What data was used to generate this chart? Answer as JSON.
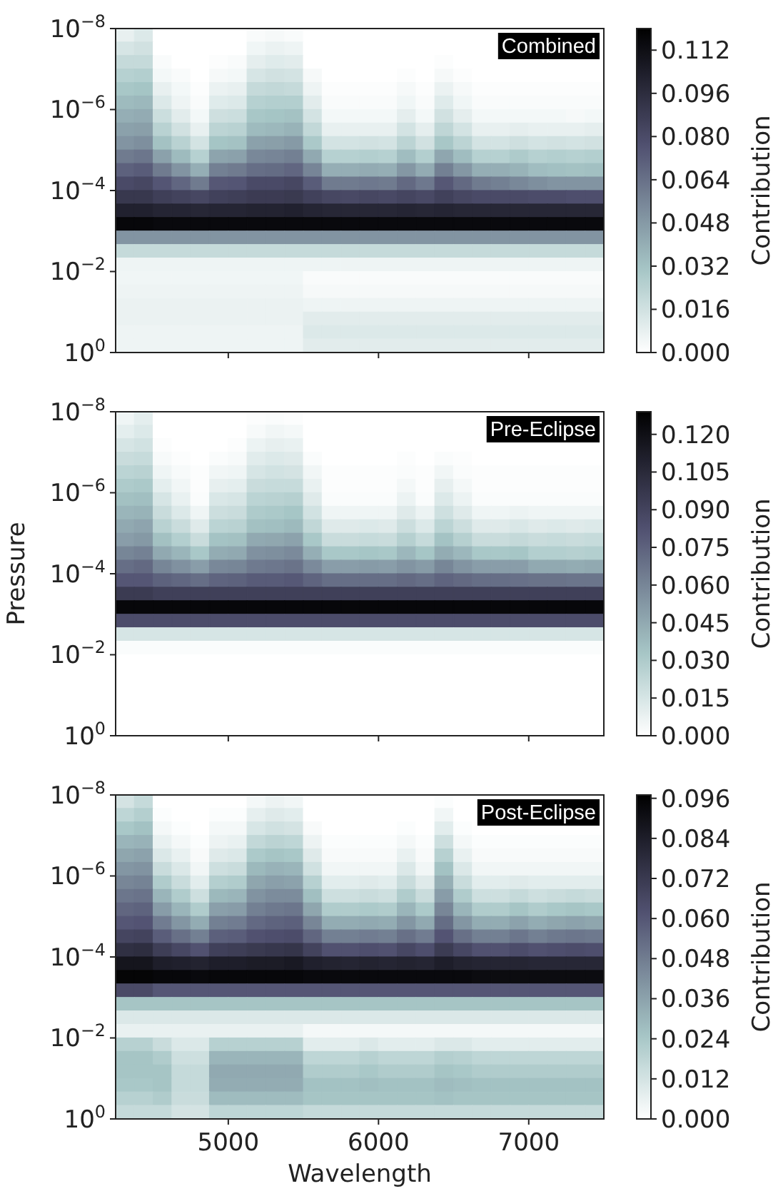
{
  "chart_data": [
    {
      "type": "heatmap",
      "annotations": [
        "Combined"
      ],
      "clabel": "Contribution",
      "tick_labels": "y",
      "log": "y",
      "xlim": [
        4250,
        7500
      ],
      "xticks": [
        5000,
        6000,
        7000
      ],
      "ylim": [
        1,
        1e-08
      ],
      "yticks": [
        {
          "value": 1e-08,
          "label": "10$^{−8}$"
        },
        {
          "value": 1e-06,
          "label": "10$^{−6}$"
        },
        {
          "value": 0.0001,
          "label": "10$^{−4}$"
        },
        {
          "value": 0.01,
          "label": "10$^{−2}$"
        },
        {
          "value": 1,
          "label": "10$^{0}$"
        }
      ],
      "clim": [
        0,
        0.12
      ],
      "cticks": [
        {
          "value": 0,
          "label": "0.000"
        },
        0.016,
        0.032,
        0.048,
        0.064,
        {
          "value": 0.08,
          "label": "0.080"
        },
        0.096,
        0.112
      ],
      "x": [
        4312.5,
        4437.5,
        4562.5,
        4687.5,
        4812.5,
        4937.5,
        5062.5,
        5187.5,
        5312.5,
        5437.5,
        5562.5,
        5687.5,
        5812.5,
        5937.5,
        6062.5,
        6187.5,
        6312.5,
        6437.5,
        6562.5,
        6687.5,
        6812.5,
        6937.5,
        7062.5,
        7187.5,
        7312.5,
        7437.5
      ],
      "y": [
        1.47e-08,
        3.16e-08,
        6.81e-08,
        1.47e-07,
        3.16e-07,
        6.81e-07,
        1.47e-06,
        3.16e-06,
        6.81e-06,
        1.47e-05,
        3.16e-05,
        6.81e-05,
        0.000147,
        0.000316,
        0.000681,
        0.00147,
        0.00316,
        0.00681,
        0.0147,
        0.0316,
        0.0681,
        0.147,
        0.316,
        0.681
      ],
      "cells": [
        [
          0.008,
          0.012,
          0,
          0,
          0,
          0,
          0,
          0.002,
          0.003,
          0.002,
          0,
          0,
          0,
          0,
          0,
          0,
          0,
          0,
          0,
          0,
          null,
          null,
          null,
          null,
          null,
          null
        ],
        [
          0.014,
          0.016,
          0,
          0,
          0,
          0,
          0,
          0.005,
          0.007,
          0.006,
          0,
          0,
          0,
          0,
          0,
          0,
          0,
          0,
          0,
          0,
          null,
          null,
          null,
          null,
          null,
          null
        ],
        [
          0.02,
          0.02,
          0.002,
          0,
          0,
          0.001,
          0.002,
          0.009,
          0.011,
          0.01,
          0,
          0,
          0,
          0,
          0,
          0,
          0,
          0.001,
          0,
          0,
          0,
          0,
          0,
          0,
          0,
          0
        ],
        [
          0.025,
          0.026,
          0.004,
          0.002,
          0,
          0.003,
          0.004,
          0.014,
          0.016,
          0.015,
          0.003,
          0,
          0,
          0,
          0,
          0.001,
          0,
          0.003,
          0.001,
          0,
          0,
          0,
          0,
          0,
          0,
          0
        ],
        [
          0.03,
          0.031,
          0.008,
          0.004,
          0.001,
          0.007,
          0.008,
          0.02,
          0.021,
          0.02,
          0.006,
          0.001,
          0.001,
          0.001,
          0.001,
          0.003,
          0.001,
          0.007,
          0.003,
          0.001,
          0.001,
          0.001,
          0.001,
          0.001,
          0.001,
          0.001
        ],
        [
          0.035,
          0.036,
          0.012,
          0.006,
          0.002,
          0.011,
          0.012,
          0.025,
          0.026,
          0.026,
          0.01,
          0.002,
          0.002,
          0.002,
          0.002,
          0.005,
          0.002,
          0.011,
          0.005,
          0.002,
          0.002,
          0.002,
          0.002,
          0.002,
          0.002,
          0.002
        ],
        [
          0.04,
          0.041,
          0.018,
          0.01,
          0.004,
          0.017,
          0.018,
          0.03,
          0.031,
          0.032,
          0.015,
          0.004,
          0.004,
          0.004,
          0.004,
          0.009,
          0.004,
          0.016,
          0.009,
          0.004,
          0.004,
          0.004,
          0.004,
          0.004,
          0.003,
          0.004
        ],
        [
          0.045,
          0.046,
          0.024,
          0.016,
          0.008,
          0.023,
          0.024,
          0.035,
          0.036,
          0.038,
          0.021,
          0.008,
          0.008,
          0.008,
          0.008,
          0.015,
          0.009,
          0.022,
          0.015,
          0.008,
          0.008,
          0.009,
          0.008,
          0.008,
          0.008,
          0.009
        ],
        [
          0.05,
          0.052,
          0.032,
          0.024,
          0.015,
          0.031,
          0.032,
          0.045,
          0.046,
          0.048,
          0.029,
          0.015,
          0.015,
          0.016,
          0.015,
          0.023,
          0.016,
          0.03,
          0.023,
          0.015,
          0.015,
          0.017,
          0.015,
          0.016,
          0.015,
          0.016
        ],
        [
          0.06,
          0.062,
          0.045,
          0.035,
          0.025,
          0.044,
          0.045,
          0.055,
          0.056,
          0.058,
          0.042,
          0.025,
          0.025,
          0.026,
          0.025,
          0.034,
          0.026,
          0.043,
          0.034,
          0.025,
          0.025,
          0.028,
          0.025,
          0.026,
          0.025,
          0.026
        ],
        [
          0.07,
          0.072,
          0.06,
          0.05,
          0.04,
          0.058,
          0.06,
          0.065,
          0.066,
          0.068,
          0.056,
          0.04,
          0.04,
          0.041,
          0.04,
          0.049,
          0.041,
          0.058,
          0.049,
          0.04,
          0.04,
          0.038,
          0.034,
          0.033,
          0.032,
          0.033
        ],
        [
          0.08,
          0.082,
          0.075,
          0.068,
          0.06,
          0.074,
          0.075,
          0.08,
          0.08,
          0.082,
          0.072,
          0.06,
          0.06,
          0.061,
          0.06,
          0.067,
          0.061,
          0.074,
          0.067,
          0.06,
          0.058,
          0.055,
          0.052,
          0.05,
          0.05,
          0.05
        ],
        [
          0.09,
          0.09,
          0.086,
          0.084,
          0.082,
          0.085,
          0.086,
          0.088,
          0.088,
          0.089,
          0.085,
          0.082,
          0.081,
          0.082,
          0.081,
          0.083,
          0.081,
          0.085,
          0.082,
          0.08,
          0.08,
          0.08,
          0.079,
          0.079,
          0.078,
          0.078
        ],
        [
          0.102,
          0.102,
          0.1,
          0.1,
          0.099,
          0.1,
          0.1,
          0.101,
          0.101,
          0.102,
          0.1,
          0.099,
          0.099,
          0.099,
          0.099,
          0.1,
          0.099,
          0.1,
          0.099,
          0.099,
          0.099,
          0.099,
          0.099,
          0.099,
          0.099,
          0.099
        ],
        [
          0.116,
          0.116,
          0.115,
          0.115,
          0.115,
          0.115,
          0.115,
          0.115,
          0.115,
          0.115,
          0.115,
          0.115,
          0.115,
          0.115,
          0.115,
          0.115,
          0.115,
          0.115,
          0.115,
          0.115,
          0.115,
          0.115,
          0.115,
          0.115,
          0.115,
          0.115
        ],
        [
          0.05,
          0.05,
          0.05,
          0.05,
          0.05,
          0.05,
          0.05,
          0.05,
          0.05,
          0.05,
          0.05,
          0.05,
          0.05,
          0.05,
          0.05,
          0.05,
          0.05,
          0.05,
          0.05,
          0.05,
          0.05,
          0.05,
          0.05,
          0.05,
          0.05,
          0.05
        ],
        [
          0.02,
          0.02,
          0.02,
          0.02,
          0.02,
          0.02,
          0.02,
          0.02,
          0.02,
          0.02,
          0.02,
          0.02,
          0.02,
          0.02,
          0.02,
          0.02,
          0.02,
          0.02,
          0.02,
          0.02,
          0.02,
          0.02,
          0.02,
          0.02,
          0.02,
          0.02
        ],
        [
          0.006,
          0.006,
          0.006,
          0.006,
          0.006,
          0.006,
          0.006,
          0.006,
          0.006,
          0.006,
          0.006,
          0.006,
          0.006,
          0.006,
          0.006,
          0.006,
          0.006,
          0.006,
          0.006,
          0.006,
          0.006,
          0.006,
          0.006,
          0.006,
          0.006,
          0.006
        ],
        [
          0.005,
          0.005,
          0.005,
          0.005,
          0.005,
          0.005,
          0.005,
          0.005,
          0.005,
          0.005,
          0.002,
          0.002,
          0.002,
          0.002,
          0.002,
          0.002,
          0.002,
          0.002,
          0.002,
          0.002,
          0.002,
          0.002,
          0.002,
          0.002,
          0.002,
          0.002
        ],
        [
          0.006,
          0.006,
          0.006,
          0.006,
          0.006,
          0.006,
          0.006,
          0.006,
          0.006,
          0.006,
          0.003,
          0.003,
          0.003,
          0.003,
          0.003,
          0.003,
          0.003,
          0.003,
          0.003,
          0.003,
          0.003,
          0.003,
          0.003,
          0.003,
          0.003,
          0.003
        ],
        [
          0.007,
          0.007,
          0.007,
          0.007,
          0.007,
          0.007,
          0.007,
          0.007,
          0.007,
          0.007,
          0.006,
          0.006,
          0.006,
          0.006,
          0.006,
          0.006,
          0.006,
          0.006,
          0.006,
          0.006,
          0.006,
          0.006,
          0.006,
          0.006,
          0.006,
          0.006
        ],
        [
          0.007,
          0.007,
          0.007,
          0.007,
          0.007,
          0.007,
          0.007,
          0.007,
          0.007,
          0.007,
          0.01,
          0.01,
          0.01,
          0.01,
          0.01,
          0.01,
          0.01,
          0.01,
          0.01,
          0.01,
          0.01,
          0.01,
          0.01,
          0.01,
          0.01,
          0.01
        ],
        [
          0.006,
          0.006,
          0.006,
          0.006,
          0.006,
          0.006,
          0.006,
          0.006,
          0.006,
          0.006,
          0.012,
          0.012,
          0.012,
          0.012,
          0.012,
          0.012,
          0.012,
          0.012,
          0.012,
          0.012,
          0.012,
          0.012,
          0.012,
          0.012,
          0.012,
          0.012
        ],
        [
          0.006,
          0.006,
          0.006,
          0.006,
          0.006,
          0.006,
          0.006,
          0.006,
          0.006,
          0.006,
          0.01,
          0.01,
          0.01,
          0.01,
          0.01,
          0.01,
          0.01,
          0.01,
          0.01,
          0.01,
          0.01,
          0.01,
          0.01,
          0.01,
          0.01,
          0.01
        ]
      ]
    },
    {
      "type": "heatmap",
      "annotations": [
        "Pre-Eclipse"
      ],
      "ylabel": "Pressure",
      "clabel": "Contribution",
      "tick_labels": "y",
      "log": "y",
      "xlim": [
        4250,
        7500
      ],
      "xticks": [
        5000,
        6000,
        7000
      ],
      "ylim": [
        1,
        1e-08
      ],
      "yticks": [
        {
          "value": 1e-08,
          "label": "10$^{−8}$"
        },
        {
          "value": 1e-06,
          "label": "10$^{−6}$"
        },
        {
          "value": 0.0001,
          "label": "10$^{−4}$"
        },
        {
          "value": 0.01,
          "label": "10$^{−2}$"
        },
        {
          "value": 1,
          "label": "10$^{0}$"
        }
      ],
      "clim": [
        0,
        0.129
      ],
      "cticks": [
        {
          "value": 0,
          "label": "0.000"
        },
        0.015,
        {
          "value": 0.03,
          "label": "0.030"
        },
        0.045,
        {
          "value": 0.06,
          "label": "0.060"
        },
        0.075,
        {
          "value": 0.09,
          "label": "0.090"
        },
        0.105,
        {
          "value": 0.12,
          "label": "0.120"
        }
      ],
      "x": [
        4312.5,
        4437.5,
        4562.5,
        4687.5,
        4812.5,
        4937.5,
        5062.5,
        5187.5,
        5312.5,
        5437.5,
        5562.5,
        5687.5,
        5812.5,
        5937.5,
        6062.5,
        6187.5,
        6312.5,
        6437.5,
        6562.5,
        6687.5,
        6812.5,
        6937.5,
        7062.5,
        7187.5,
        7312.5,
        7437.5
      ],
      "y": [
        1.47e-08,
        3.16e-08,
        6.81e-08,
        1.47e-07,
        3.16e-07,
        6.81e-07,
        1.47e-06,
        3.16e-06,
        6.81e-06,
        1.47e-05,
        3.16e-05,
        6.81e-05,
        0.000147,
        0.000316,
        0.000681,
        0.00147,
        0.00316,
        0.00681,
        0.0147,
        0.0316,
        0.0681,
        0.147,
        0.316,
        0.681
      ],
      "cells": [
        [
          0.006,
          0.01,
          0,
          0,
          0,
          0,
          0,
          0.001,
          0.002,
          0.001,
          0,
          0,
          0,
          0,
          0,
          0,
          0,
          0,
          0,
          0,
          null,
          null,
          null,
          null,
          null,
          null
        ],
        [
          0.01,
          0.013,
          0,
          0,
          0,
          0,
          0,
          0.003,
          0.005,
          0.004,
          0,
          0,
          0,
          0,
          0,
          0,
          0,
          0,
          0,
          0,
          null,
          null,
          null,
          null,
          null,
          null
        ],
        [
          0.015,
          0.017,
          0.001,
          0,
          0,
          0,
          0.001,
          0.007,
          0.009,
          0.008,
          0,
          0,
          0,
          0,
          0,
          0,
          0,
          0,
          0,
          0,
          0,
          0,
          0,
          0,
          0,
          0
        ],
        [
          0.02,
          0.021,
          0.003,
          0.001,
          0,
          0.002,
          0.003,
          0.011,
          0.013,
          0.012,
          0.002,
          0,
          0,
          0,
          0,
          0.001,
          0,
          0.002,
          0.001,
          0,
          0,
          0,
          0,
          0,
          0,
          0
        ],
        [
          0.025,
          0.026,
          0.006,
          0.003,
          0.001,
          0.005,
          0.006,
          0.015,
          0.017,
          0.016,
          0.005,
          0.001,
          0.001,
          0.001,
          0.001,
          0.002,
          0.001,
          0.005,
          0.002,
          0.001,
          0.001,
          0.001,
          0.001,
          0.001,
          0.001,
          0.001
        ],
        [
          0.03,
          0.031,
          0.01,
          0.005,
          0.001,
          0.009,
          0.01,
          0.02,
          0.021,
          0.021,
          0.008,
          0.001,
          0.001,
          0.001,
          0.001,
          0.004,
          0.001,
          0.009,
          0.004,
          0.001,
          0.001,
          0.001,
          0.001,
          0.001,
          0.001,
          0.001
        ],
        [
          0.035,
          0.036,
          0.015,
          0.008,
          0.002,
          0.014,
          0.015,
          0.025,
          0.026,
          0.027,
          0.012,
          0.002,
          0.002,
          0.002,
          0.002,
          0.007,
          0.002,
          0.013,
          0.007,
          0.002,
          0.002,
          0.002,
          0.002,
          0.002,
          0.002,
          0.002
        ],
        [
          0.04,
          0.041,
          0.02,
          0.013,
          0.006,
          0.019,
          0.02,
          0.03,
          0.031,
          0.033,
          0.017,
          0.006,
          0.006,
          0.006,
          0.006,
          0.012,
          0.007,
          0.018,
          0.012,
          0.006,
          0.006,
          0.007,
          0.006,
          0.006,
          0.006,
          0.006
        ],
        [
          0.045,
          0.047,
          0.026,
          0.02,
          0.012,
          0.025,
          0.026,
          0.035,
          0.036,
          0.038,
          0.023,
          0.012,
          0.012,
          0.013,
          0.012,
          0.019,
          0.013,
          0.025,
          0.019,
          0.012,
          0.012,
          0.014,
          0.012,
          0.013,
          0.012,
          0.013
        ],
        [
          0.05,
          0.052,
          0.035,
          0.028,
          0.02,
          0.034,
          0.035,
          0.045,
          0.046,
          0.048,
          0.032,
          0.02,
          0.02,
          0.021,
          0.02,
          0.027,
          0.021,
          0.034,
          0.027,
          0.02,
          0.02,
          0.022,
          0.02,
          0.021,
          0.02,
          0.021
        ],
        [
          0.06,
          0.062,
          0.045,
          0.04,
          0.032,
          0.044,
          0.045,
          0.055,
          0.056,
          0.058,
          0.043,
          0.032,
          0.032,
          0.033,
          0.032,
          0.039,
          0.033,
          0.044,
          0.039,
          0.032,
          0.032,
          0.033,
          0.028,
          0.028,
          0.027,
          0.028
        ],
        [
          0.07,
          0.072,
          0.06,
          0.055,
          0.05,
          0.059,
          0.06,
          0.065,
          0.066,
          0.068,
          0.058,
          0.05,
          0.05,
          0.051,
          0.05,
          0.054,
          0.051,
          0.06,
          0.054,
          0.05,
          0.05,
          0.05,
          0.045,
          0.045,
          0.044,
          0.045
        ],
        [
          0.08,
          0.08,
          0.075,
          0.073,
          0.07,
          0.074,
          0.075,
          0.078,
          0.078,
          0.079,
          0.074,
          0.07,
          0.07,
          0.07,
          0.07,
          0.072,
          0.07,
          0.074,
          0.072,
          0.07,
          0.07,
          0.069,
          0.068,
          0.068,
          0.067,
          0.067
        ],
        [
          0.095,
          0.095,
          0.092,
          0.092,
          0.092,
          0.092,
          0.092,
          0.092,
          0.092,
          0.092,
          0.092,
          0.092,
          0.092,
          0.092,
          0.092,
          0.092,
          0.092,
          0.092,
          0.092,
          0.092,
          0.092,
          0.092,
          0.092,
          0.092,
          0.092,
          0.092
        ],
        [
          0.125,
          0.125,
          0.125,
          0.125,
          0.125,
          0.125,
          0.125,
          0.125,
          0.125,
          0.125,
          0.125,
          0.125,
          0.125,
          0.125,
          0.125,
          0.125,
          0.125,
          0.125,
          0.125,
          0.125,
          0.125,
          0.125,
          0.125,
          0.125,
          0.125,
          0.125
        ],
        [
          0.085,
          0.085,
          0.085,
          0.085,
          0.085,
          0.085,
          0.085,
          0.085,
          0.085,
          0.085,
          0.085,
          0.085,
          0.085,
          0.085,
          0.085,
          0.085,
          0.085,
          0.085,
          0.085,
          0.085,
          0.085,
          0.085,
          0.085,
          0.085,
          0.085,
          0.085
        ],
        [
          0.015,
          0.015,
          0.015,
          0.015,
          0.015,
          0.015,
          0.015,
          0.015,
          0.015,
          0.015,
          0.015,
          0.015,
          0.015,
          0.015,
          0.015,
          0.015,
          0.015,
          0.015,
          0.015,
          0.015,
          0.015,
          0.015,
          0.015,
          0.015,
          0.015,
          0.015
        ],
        [
          0.002,
          0.002,
          0.002,
          0.002,
          0.002,
          0.002,
          0.002,
          0.002,
          0.002,
          0.002,
          0.002,
          0.002,
          0.002,
          0.002,
          0.002,
          0.002,
          0.002,
          0.002,
          0.002,
          0.002,
          0.002,
          0.002,
          0.002,
          0.002,
          0.002,
          0.002
        ],
        [
          0,
          0,
          0,
          0,
          0,
          0,
          0,
          0,
          0,
          0,
          0,
          0,
          0,
          0,
          0,
          0,
          0,
          0,
          0,
          0,
          0,
          0,
          0,
          0,
          0,
          0
        ],
        [
          0,
          0,
          0,
          0,
          0,
          0,
          0,
          0,
          0,
          0,
          0,
          0,
          0,
          0,
          0,
          0,
          0,
          0,
          0,
          0,
          0,
          0,
          0,
          0,
          0,
          0
        ],
        [
          0,
          0,
          0,
          0,
          0,
          0,
          0,
          0,
          0,
          0,
          0,
          0,
          0,
          0,
          0,
          0,
          0,
          0,
          0,
          0,
          0,
          0,
          0,
          0,
          0,
          0
        ],
        [
          0,
          0,
          0,
          0,
          0,
          0,
          0,
          0,
          0,
          0,
          0,
          0,
          0,
          0,
          0,
          0,
          0,
          0,
          0,
          0,
          0,
          0,
          0,
          0,
          0,
          0
        ],
        [
          0,
          0,
          0,
          0,
          0,
          0,
          0,
          0,
          0,
          0,
          0,
          0,
          0,
          0,
          0,
          0,
          0,
          0,
          0,
          0,
          0,
          0,
          0,
          0,
          0,
          0
        ],
        [
          0,
          0,
          0,
          0,
          0,
          0,
          0,
          0,
          0,
          0,
          0,
          0,
          0,
          0,
          0,
          0,
          0,
          0,
          0,
          0,
          0,
          0,
          0,
          0,
          0,
          0
        ]
      ]
    },
    {
      "type": "heatmap",
      "annotations": [
        "Post-Eclipse"
      ],
      "xlabel": "Wavelength",
      "clabel": "Contribution",
      "log": "y",
      "xlim": [
        4250,
        7500
      ],
      "xticks": [
        5000,
        6000,
        7000
      ],
      "ylim": [
        1,
        1e-08
      ],
      "yticks": [
        {
          "value": 1e-08,
          "label": "10$^{−8}$"
        },
        {
          "value": 1e-06,
          "label": "10$^{−6}$"
        },
        {
          "value": 0.0001,
          "label": "10$^{−4}$"
        },
        {
          "value": 0.01,
          "label": "10$^{−2}$"
        },
        {
          "value": 1,
          "label": "10$^{0}$"
        }
      ],
      "clim": [
        0,
        0.097
      ],
      "cticks": [
        {
          "value": 0,
          "label": "0.000"
        },
        0.012,
        0.024,
        0.036,
        0.048,
        {
          "value": 0.06,
          "label": "0.060"
        },
        0.072,
        0.084,
        0.096
      ],
      "x": [
        4312.5,
        4437.5,
        4562.5,
        4687.5,
        4812.5,
        4937.5,
        5062.5,
        5187.5,
        5312.5,
        5437.5,
        5562.5,
        5687.5,
        5812.5,
        5937.5,
        6062.5,
        6187.5,
        6312.5,
        6437.5,
        6562.5,
        6687.5,
        6812.5,
        6937.5,
        7062.5,
        7187.5,
        7312.5,
        7437.5
      ],
      "y": [
        1.47e-08,
        3.16e-08,
        6.81e-08,
        1.47e-07,
        3.16e-07,
        6.81e-07,
        1.47e-06,
        3.16e-06,
        6.81e-06,
        1.47e-05,
        3.16e-05,
        6.81e-05,
        0.000147,
        0.000316,
        0.000681,
        0.00147,
        0.00316,
        0.00681,
        0.0147,
        0.0316,
        0.0681,
        0.147,
        0.316,
        0.681
      ],
      "cells": [
        [
          0.012,
          0.016,
          0,
          0,
          0,
          0,
          0,
          0.003,
          0.005,
          0.004,
          0,
          0,
          0,
          0,
          0,
          0,
          0,
          0.001,
          0,
          null,
          null,
          null,
          null,
          null,
          null,
          null
        ],
        [
          0.018,
          0.021,
          0.001,
          0,
          0,
          0.001,
          0.001,
          0.007,
          0.009,
          0.008,
          0,
          0,
          0,
          0,
          0,
          0,
          0,
          0.004,
          0,
          null,
          null,
          null,
          null,
          null,
          null,
          null
        ],
        [
          0.024,
          0.026,
          0.003,
          0.001,
          0,
          0.003,
          0.003,
          0.011,
          0.013,
          0.012,
          0.002,
          0,
          0,
          0,
          0,
          0.001,
          0,
          0.008,
          0.001,
          0,
          0,
          0,
          0,
          0,
          0,
          0
        ],
        [
          0.03,
          0.031,
          0.006,
          0.003,
          0.001,
          0.005,
          0.006,
          0.017,
          0.019,
          0.018,
          0.005,
          0.001,
          0.001,
          0.001,
          0.001,
          0.003,
          0.001,
          0.014,
          0.003,
          0.001,
          0.001,
          0.001,
          0.001,
          0.001,
          0.001,
          0.001
        ],
        [
          0.035,
          0.036,
          0.01,
          0.006,
          0.002,
          0.009,
          0.01,
          0.023,
          0.025,
          0.024,
          0.009,
          0.002,
          0.002,
          0.002,
          0.002,
          0.006,
          0.002,
          0.02,
          0.006,
          0.002,
          0.002,
          0.002,
          0.002,
          0.002,
          0.002,
          0.002
        ],
        [
          0.04,
          0.041,
          0.015,
          0.01,
          0.004,
          0.014,
          0.015,
          0.029,
          0.031,
          0.03,
          0.013,
          0.004,
          0.004,
          0.004,
          0.004,
          0.01,
          0.004,
          0.026,
          0.01,
          0.004,
          0.004,
          0.004,
          0.004,
          0.004,
          0.004,
          0.004
        ],
        [
          0.045,
          0.046,
          0.022,
          0.015,
          0.008,
          0.021,
          0.022,
          0.035,
          0.037,
          0.036,
          0.02,
          0.008,
          0.008,
          0.009,
          0.008,
          0.015,
          0.009,
          0.032,
          0.015,
          0.008,
          0.008,
          0.009,
          0.008,
          0.008,
          0.008,
          0.008
        ],
        [
          0.05,
          0.051,
          0.03,
          0.022,
          0.014,
          0.029,
          0.03,
          0.041,
          0.043,
          0.043,
          0.027,
          0.014,
          0.014,
          0.015,
          0.014,
          0.022,
          0.015,
          0.038,
          0.022,
          0.014,
          0.014,
          0.016,
          0.014,
          0.015,
          0.016,
          0.015
        ],
        [
          0.055,
          0.056,
          0.038,
          0.03,
          0.022,
          0.037,
          0.038,
          0.047,
          0.049,
          0.05,
          0.035,
          0.022,
          0.022,
          0.023,
          0.022,
          0.03,
          0.023,
          0.045,
          0.03,
          0.022,
          0.022,
          0.025,
          0.022,
          0.024,
          0.025,
          0.024
        ],
        [
          0.06,
          0.061,
          0.048,
          0.04,
          0.033,
          0.047,
          0.048,
          0.054,
          0.056,
          0.057,
          0.045,
          0.033,
          0.033,
          0.034,
          0.033,
          0.04,
          0.034,
          0.053,
          0.04,
          0.033,
          0.033,
          0.036,
          0.033,
          0.035,
          0.036,
          0.035
        ],
        [
          0.067,
          0.068,
          0.058,
          0.052,
          0.047,
          0.057,
          0.058,
          0.062,
          0.063,
          0.064,
          0.055,
          0.047,
          0.047,
          0.048,
          0.047,
          0.052,
          0.048,
          0.061,
          0.052,
          0.047,
          0.047,
          0.05,
          0.047,
          0.049,
          0.05,
          0.049
        ],
        [
          0.076,
          0.077,
          0.07,
          0.066,
          0.062,
          0.069,
          0.07,
          0.072,
          0.073,
          0.074,
          0.068,
          0.062,
          0.062,
          0.063,
          0.062,
          0.066,
          0.063,
          0.071,
          0.066,
          0.062,
          0.062,
          0.064,
          0.062,
          0.063,
          0.064,
          0.063
        ],
        [
          0.088,
          0.088,
          0.084,
          0.083,
          0.082,
          0.084,
          0.084,
          0.085,
          0.085,
          0.086,
          0.083,
          0.082,
          0.081,
          0.082,
          0.081,
          0.082,
          0.081,
          0.084,
          0.082,
          0.081,
          0.081,
          0.081,
          0.08,
          0.08,
          0.08,
          0.08
        ],
        [
          0.095,
          0.095,
          0.094,
          0.094,
          0.093,
          0.094,
          0.094,
          0.094,
          0.094,
          0.094,
          0.093,
          0.093,
          0.093,
          0.093,
          0.093,
          0.093,
          0.093,
          0.093,
          0.093,
          0.092,
          0.092,
          0.092,
          0.092,
          0.092,
          0.092,
          0.092
        ],
        [
          0.065,
          0.065,
          0.06,
          0.06,
          0.06,
          0.06,
          0.06,
          0.06,
          0.06,
          0.06,
          0.06,
          0.06,
          0.06,
          0.06,
          0.06,
          0.06,
          0.06,
          0.06,
          0.06,
          0.06,
          0.06,
          0.06,
          0.06,
          0.06,
          0.06,
          0.06
        ],
        [
          0.025,
          0.025,
          0.025,
          0.025,
          0.025,
          0.025,
          0.025,
          0.025,
          0.025,
          0.025,
          0.025,
          0.025,
          0.025,
          0.025,
          0.025,
          0.025,
          0.025,
          0.025,
          0.025,
          0.025,
          0.025,
          0.025,
          0.025,
          0.025,
          0.025,
          0.025
        ],
        [
          0.01,
          0.01,
          0.01,
          0.01,
          0.01,
          0.01,
          0.01,
          0.01,
          0.01,
          0.01,
          0.01,
          0.01,
          0.01,
          0.01,
          0.01,
          0.01,
          0.01,
          0.01,
          0.01,
          0.01,
          0.01,
          0.01,
          0.01,
          0.01,
          0.01,
          0.01
        ],
        [
          0.006,
          0.006,
          0.006,
          0.006,
          0.006,
          0.006,
          0.006,
          0.006,
          0.006,
          0.006,
          0.003,
          0.003,
          0.003,
          0.003,
          0.003,
          0.003,
          0.003,
          0.003,
          0.003,
          0.003,
          0.003,
          0.003,
          0.003,
          0.003,
          0.003,
          0.003
        ],
        [
          0.02,
          0.02,
          0.015,
          0.01,
          0.01,
          0.02,
          0.02,
          0.02,
          0.02,
          0.02,
          0.008,
          0.008,
          0.008,
          0.01,
          0.008,
          0.008,
          0.008,
          0.01,
          0.01,
          0.008,
          0.008,
          0.008,
          0.008,
          0.008,
          0.008,
          0.008
        ],
        [
          0.025,
          0.025,
          0.022,
          0.014,
          0.014,
          0.03,
          0.03,
          0.03,
          0.03,
          0.03,
          0.018,
          0.018,
          0.018,
          0.02,
          0.018,
          0.018,
          0.018,
          0.021,
          0.02,
          0.018,
          0.018,
          0.018,
          0.018,
          0.018,
          0.018,
          0.018
        ],
        [
          0.025,
          0.025,
          0.025,
          0.016,
          0.016,
          0.034,
          0.034,
          0.034,
          0.034,
          0.034,
          0.022,
          0.022,
          0.022,
          0.024,
          0.022,
          0.022,
          0.022,
          0.025,
          0.024,
          0.022,
          0.022,
          0.022,
          0.022,
          0.022,
          0.022,
          0.022
        ],
        [
          0.024,
          0.024,
          0.025,
          0.016,
          0.016,
          0.033,
          0.033,
          0.033,
          0.033,
          0.033,
          0.026,
          0.026,
          0.026,
          0.027,
          0.026,
          0.026,
          0.026,
          0.028,
          0.027,
          0.026,
          0.026,
          0.026,
          0.026,
          0.026,
          0.026,
          0.026
        ],
        [
          0.02,
          0.02,
          0.022,
          0.015,
          0.015,
          0.028,
          0.028,
          0.028,
          0.028,
          0.028,
          0.025,
          0.025,
          0.025,
          0.025,
          0.025,
          0.025,
          0.025,
          0.026,
          0.025,
          0.025,
          0.025,
          0.025,
          0.025,
          0.025,
          0.025,
          0.025
        ],
        [
          0.016,
          0.016,
          0.016,
          0.012,
          0.012,
          0.018,
          0.018,
          0.018,
          0.018,
          0.018,
          0.016,
          0.016,
          0.016,
          0.016,
          0.016,
          0.016,
          0.016,
          0.016,
          0.016,
          0.016,
          0.016,
          0.016,
          0.016,
          0.016,
          0.016,
          0.016
        ]
      ]
    }
  ]
}
